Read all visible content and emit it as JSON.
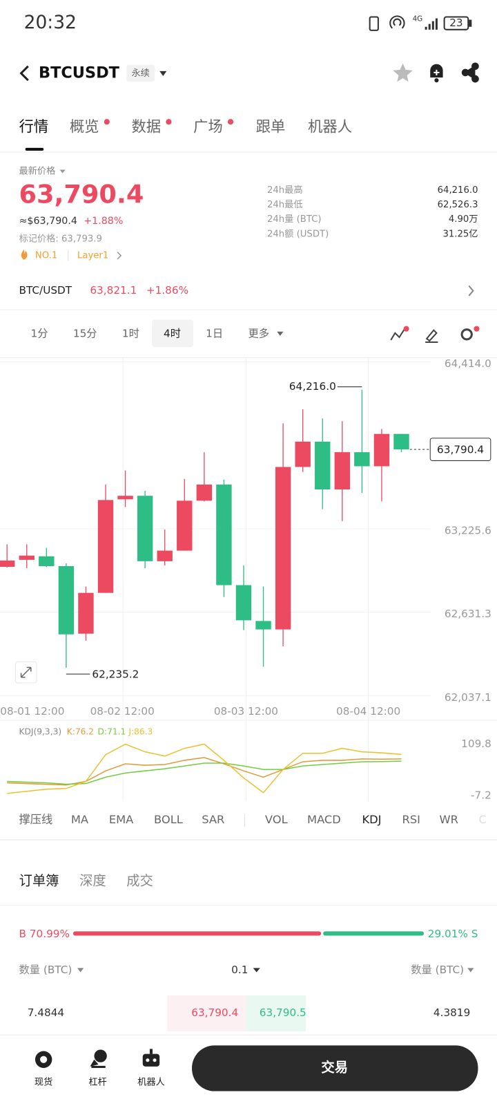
{
  "status_bar": {
    "time": "20:32",
    "network": "4G",
    "battery": "23"
  },
  "header": {
    "symbol": "BTCUSDT",
    "tag": "永续"
  },
  "tabs": [
    "行情",
    "概览",
    "数据",
    "广场",
    "跟单",
    "机器人"
  ],
  "price": {
    "label": "最新价格",
    "last": "63,790.4",
    "approx": "≈$63,790.4",
    "change": "+1.88%",
    "mark": "标记价格: 63,793.9",
    "rank": "NO.1",
    "sector": "Layer1"
  },
  "stats": [
    [
      "24h最高",
      "64,216.0"
    ],
    [
      "24h最低",
      "62,526.3"
    ],
    [
      "24h量 (BTC)",
      "4.90万"
    ],
    [
      "24h额 (USDT)",
      "31.25亿"
    ]
  ],
  "spot": {
    "pair": "BTC/USDT",
    "price": "63,821.1",
    "change": "+1.86%"
  },
  "intervals": [
    "1分",
    "15分",
    "1时",
    "4时",
    "1日",
    "更多"
  ],
  "chart": {
    "type": "candlestick",
    "up_color": "#ec4a61",
    "down_color": "#2ebd85",
    "ylim": [
      62037.1,
      64414.0
    ],
    "yticks": [
      {
        "value": 62037.1,
        "label": "62,037.1"
      },
      {
        "value": 62631.3,
        "label": "62,631.3"
      },
      {
        "value": 63225.6,
        "label": "63,225.6"
      },
      {
        "value": 64414.0,
        "label": "64,414.0"
      }
    ],
    "xlabels": [
      "08-01 12:00",
      "08-02 12:00",
      "08-03 12:00",
      "08-04 12:00"
    ],
    "high_label": "64,216.0",
    "low_label": "62,235.2",
    "last_label": "63,790.4",
    "candles": [
      {
        "open": 62954.0,
        "high": 63114.4,
        "low": 62949.0,
        "close": 62999.1
      },
      {
        "open": 63004.1,
        "high": 63114.4,
        "low": 62944.0,
        "close": 63034.2
      },
      {
        "open": 63029.2,
        "high": 63089.3,
        "low": 62954.0,
        "close": 62959.0
      },
      {
        "open": 62959.0,
        "high": 62979.1,
        "low": 62235.2,
        "close": 62473.0
      },
      {
        "open": 62478.0,
        "high": 62813.7,
        "low": 62427.9,
        "close": 62768.6
      },
      {
        "open": 62768.6,
        "high": 63540.3,
        "low": 62768.6,
        "close": 63430.0
      },
      {
        "open": 63435.0,
        "high": 63640.5,
        "low": 63379.9,
        "close": 63460.1
      },
      {
        "open": 63460.1,
        "high": 63495.2,
        "low": 62944.0,
        "close": 62994.1
      },
      {
        "open": 62994.1,
        "high": 63219.6,
        "low": 62964.0,
        "close": 63069.3
      },
      {
        "open": 63069.3,
        "high": 63580.3,
        "low": 63069.3,
        "close": 63425.0
      },
      {
        "open": 63425.0,
        "high": 63770.7,
        "low": 63420.0,
        "close": 63540.3
      },
      {
        "open": 63540.3,
        "high": 63575.3,
        "low": 62738.6,
        "close": 62823.7
      },
      {
        "open": 62823.7,
        "high": 62964.0,
        "low": 62503.1,
        "close": 62573.2
      },
      {
        "open": 62568.2,
        "high": 62813.7,
        "low": 62242.5,
        "close": 62508.1
      },
      {
        "open": 62508.1,
        "high": 63976.2,
        "low": 62387.8,
        "close": 63665.5
      },
      {
        "open": 63665.5,
        "high": 64076.4,
        "low": 63630.4,
        "close": 63845.9
      },
      {
        "open": 63845.9,
        "high": 64011.2,
        "low": 63364.9,
        "close": 63505.2
      },
      {
        "open": 63505.2,
        "high": 63991.2,
        "low": 63279.7,
        "close": 63770.7
      },
      {
        "open": 63770.7,
        "high": 64216.0,
        "low": 63480.1,
        "close": 63670.5
      },
      {
        "open": 63670.5,
        "high": 63936.1,
        "low": 63420.0,
        "close": 63901.0
      },
      {
        "open": 63901.0,
        "high": 63901.0,
        "low": 63770.7,
        "close": 63790.4
      }
    ]
  },
  "kdj": {
    "type": "line",
    "legend": {
      "name": "KDJ(9,3,3)",
      "k": "K:76.2",
      "d": "D:71.1",
      "j": "J:86.3"
    },
    "ylim": [
      -7.2,
      109.8
    ],
    "yticks": [
      -7.2,
      109.8
    ],
    "series": [
      {
        "name": "K",
        "color": "#e39a3b",
        "values": [
          21.6,
          20.0,
          18.4,
          16.8,
          24.9,
          48.9,
          64.9,
          61.7,
          63.3,
          72.9,
          79.3,
          64.9,
          48.9,
          34.5,
          52.1,
          69.7,
          72.9,
          72.9,
          76.1,
          75.5,
          76.2
        ]
      },
      {
        "name": "D",
        "color": "#73cd3f",
        "values": [
          24.9,
          23.3,
          21.6,
          18.4,
          20.0,
          34.5,
          44.1,
          48.9,
          53.7,
          60.1,
          66.5,
          66.5,
          60.1,
          52.1,
          52.1,
          60.1,
          63.3,
          66.5,
          69.7,
          70.0,
          71.1
        ]
      },
      {
        "name": "J",
        "color": "#e8c233",
        "values": [
          -2.4,
          2.4,
          7.2,
          8.8,
          24.9,
          85.8,
          109.8,
          92.2,
          82.6,
          100.2,
          109.8,
          72.9,
          32.9,
          -0.8,
          52.1,
          89.0,
          89.0,
          100.2,
          92.2,
          90.0,
          86.3
        ]
      }
    ]
  },
  "indicators": [
    "撑压线",
    "MA",
    "EMA",
    "BOLL",
    "SAR",
    "VOL",
    "MACD",
    "KDJ",
    "RSI",
    "WR"
  ],
  "orderbook": {
    "tabs": [
      "订单簿",
      "深度",
      "成交"
    ],
    "buy": {
      "value": 70.99,
      "label": "B 70.99%"
    },
    "sell": {
      "value": 29.01,
      "label": "29.01% S"
    },
    "headers": [
      "数量 (BTC)",
      "0.1",
      "数量 (BTC)"
    ],
    "row": [
      "7.4844",
      "63,790.4",
      "63,790.5",
      "4.3819"
    ]
  },
  "bottom_nav": [
    "现货",
    "杠杆",
    "机器人"
  ],
  "trade_button": "交易"
}
